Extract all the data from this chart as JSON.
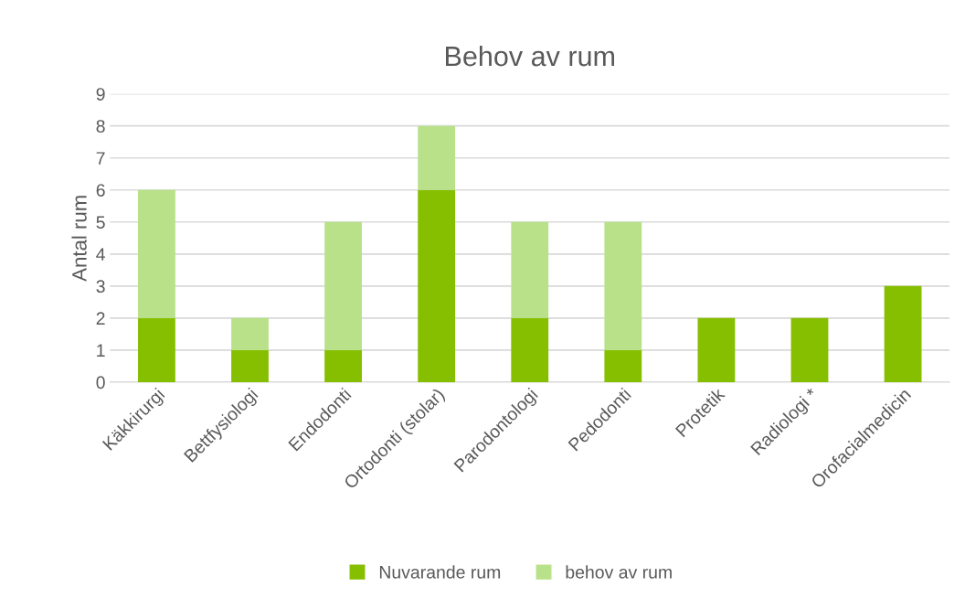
{
  "chart_data": {
    "type": "bar",
    "title": "Behov av rum",
    "ylabel": "Antal rum",
    "stacked": true,
    "categories": [
      "Käkkirurgi",
      "Bettfysiologi",
      "Endodonti",
      "Ortodonti (stolar)",
      "Parodontologi",
      "Pedodonti",
      "Protetik",
      "Radiologi *",
      "Orofacialmedicin"
    ],
    "series": [
      {
        "name": "Nuvarande rum",
        "color": "#86bf00",
        "values": [
          2,
          1,
          1,
          6,
          2,
          1,
          2,
          2,
          3
        ]
      },
      {
        "name": "behov av rum",
        "color": "#b9e18a",
        "values": [
          4,
          1,
          4,
          2,
          3,
          4,
          0,
          0,
          0
        ]
      }
    ],
    "ylim": [
      0,
      9
    ],
    "yticks": [
      0,
      1,
      2,
      3,
      4,
      5,
      6,
      7,
      8,
      9
    ],
    "grid": "y",
    "legend": "bottom"
  }
}
